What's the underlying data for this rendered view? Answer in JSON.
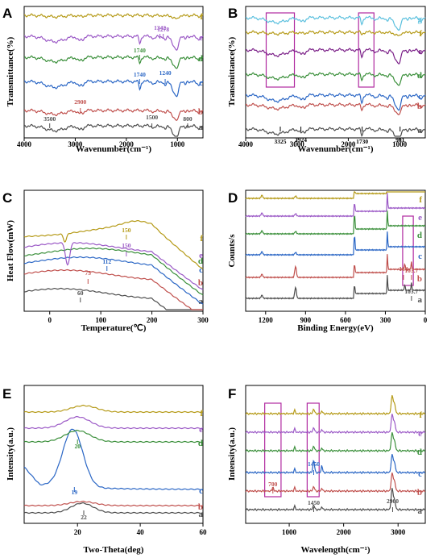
{
  "colors": {
    "a": "#4d4d4d",
    "b": "#c0504d",
    "c": "#2a66c5",
    "d": "#3a8f3a",
    "e": "#9b59c6",
    "f": "#b59a17",
    "g": "#5bc0de",
    "purple_dark": "#7a1e87",
    "magenta_box": "#b02aa0"
  },
  "chart_data": [
    {
      "panel": "A",
      "type": "line",
      "xlabel": "Wavenumber(cm⁻¹)",
      "ylabel": "Transmittance(%)",
      "xlim": [
        4000,
        500
      ],
      "x_ticks": [
        4000,
        3000,
        2000,
        1000
      ],
      "series": [
        {
          "name": "a"
        },
        {
          "name": "b"
        },
        {
          "name": "c"
        },
        {
          "name": "d"
        },
        {
          "name": "e"
        },
        {
          "name": "f"
        }
      ],
      "annotations": [
        {
          "text": "3500",
          "x": 3500,
          "series": "a"
        },
        {
          "text": "1500",
          "x": 1500,
          "series": "a"
        },
        {
          "text": "800",
          "x": 800,
          "series": "a"
        },
        {
          "text": "2900",
          "x": 2900,
          "series": "b"
        },
        {
          "text": "1740",
          "x": 1740,
          "series": "c"
        },
        {
          "text": "1240",
          "x": 1240,
          "series": "c"
        },
        {
          "text": "1740",
          "x": 1740,
          "series": "d"
        },
        {
          "text": "1342",
          "x": 1342,
          "series": "e"
        },
        {
          "text": "1278",
          "x": 1278,
          "series": "e"
        }
      ]
    },
    {
      "panel": "B",
      "type": "line",
      "xlabel": "Wavenumber(cm⁻¹)",
      "ylabel": "Transmittance(%)",
      "xlim": [
        4000,
        500
      ],
      "x_ticks": [
        4000,
        3000,
        2000,
        1000
      ],
      "series": [
        {
          "name": "a"
        },
        {
          "name": "b"
        },
        {
          "name": "c"
        },
        {
          "name": "d"
        },
        {
          "name": "e"
        },
        {
          "name": "f"
        },
        {
          "name": "g"
        }
      ],
      "annotations": [
        {
          "text": "3325",
          "x": 3325
        },
        {
          "text": "2924",
          "x": 2924
        },
        {
          "text": "1730",
          "x": 1730
        },
        {
          "text": "991",
          "x": 991
        }
      ],
      "highlight_ranges": [
        [
          3600,
          3050
        ],
        [
          1800,
          1500
        ]
      ]
    },
    {
      "panel": "C",
      "type": "line",
      "xlabel": "Temperature(℃)",
      "ylabel": "Heat Flow(mW)",
      "xlim": [
        -50,
        300
      ],
      "x_ticks": [
        0,
        100,
        200,
        300
      ],
      "series": [
        {
          "name": "a"
        },
        {
          "name": "b"
        },
        {
          "name": "c"
        },
        {
          "name": "d"
        },
        {
          "name": "e"
        },
        {
          "name": "f"
        }
      ],
      "annotations": [
        {
          "text": "60",
          "x": 60,
          "series": "a"
        },
        {
          "text": "75",
          "x": 75,
          "series": "b"
        },
        {
          "text": "112",
          "x": 112,
          "series": "c"
        },
        {
          "text": "150",
          "x": 150,
          "series": "e"
        },
        {
          "text": "150",
          "x": 150,
          "series": "f"
        }
      ]
    },
    {
      "panel": "D",
      "type": "line",
      "xlabel": "Binding Energy(eV)",
      "ylabel": "Counts/s",
      "xlim": [
        1350,
        0
      ],
      "x_ticks": [
        1200,
        900,
        600,
        300,
        0
      ],
      "series": [
        {
          "name": "a"
        },
        {
          "name": "b"
        },
        {
          "name": "c"
        },
        {
          "name": "d"
        },
        {
          "name": "e"
        },
        {
          "name": "f"
        }
      ],
      "annotations": [
        {
          "text": "103.7",
          "x": 103.7,
          "series": "a"
        },
        {
          "text": "164",
          "x": 164,
          "series": "b"
        },
        {
          "text": "103.7",
          "x": 103.7,
          "series": "b"
        }
      ],
      "highlight_ranges": [
        [
          170,
          90
        ]
      ]
    },
    {
      "panel": "E",
      "type": "line",
      "xlabel": "Two-Theta(deg)",
      "ylabel": "Intensity(a.u.)",
      "xlim": [
        3,
        60
      ],
      "x_ticks": [
        20,
        40,
        60
      ],
      "series": [
        {
          "name": "a"
        },
        {
          "name": "b"
        },
        {
          "name": "c"
        },
        {
          "name": "d"
        },
        {
          "name": "e"
        },
        {
          "name": "f"
        }
      ],
      "annotations": [
        {
          "text": "22",
          "x": 22,
          "series": "a"
        },
        {
          "text": "19",
          "x": 19,
          "series": "c"
        },
        {
          "text": "20",
          "x": 20,
          "series": "d"
        }
      ]
    },
    {
      "panel": "F",
      "type": "line",
      "xlabel": "Wavelength(cm⁻¹)",
      "ylabel": "Intensity(a.u.)",
      "xlim": [
        200,
        3500
      ],
      "x_ticks": [
        1000,
        2000,
        3000
      ],
      "series": [
        {
          "name": "a"
        },
        {
          "name": "b"
        },
        {
          "name": "c"
        },
        {
          "name": "d"
        },
        {
          "name": "e"
        },
        {
          "name": "f"
        }
      ],
      "annotations": [
        {
          "text": "1450",
          "x": 1450,
          "series": "a"
        },
        {
          "text": "2900",
          "x": 2900,
          "series": "a"
        },
        {
          "text": "700",
          "x": 700,
          "series": "b"
        },
        {
          "text": "1450",
          "x": 1450,
          "series": "c"
        }
      ],
      "highlight_ranges": [
        [
          850,
          550
        ],
        [
          1550,
          1330
        ]
      ]
    }
  ]
}
